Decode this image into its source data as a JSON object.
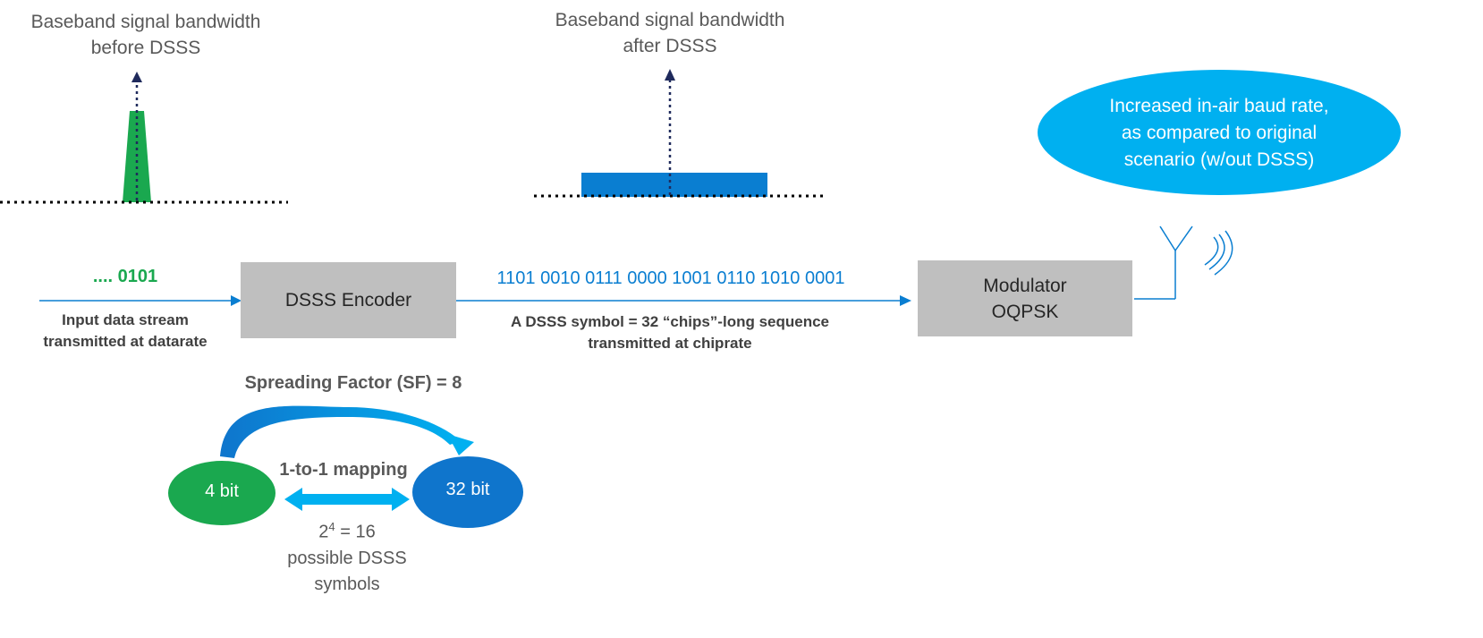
{
  "before_bandwidth": {
    "line1": "Baseband signal bandwidth",
    "line2": "before DSSS"
  },
  "after_bandwidth": {
    "line1": "Baseband signal bandwidth",
    "line2": "after DSSS"
  },
  "callout": {
    "line1": "Increased in-air baud rate,",
    "line2": "as compared to original",
    "line3": "scenario (w/out DSSS)"
  },
  "input_stream": {
    "bits": ".... 0101",
    "label_line1": "Input data stream",
    "label_line2": "transmitted at datarate"
  },
  "encoder": {
    "label": "DSSS Encoder"
  },
  "chip_stream": {
    "chips": "1101 0010 0111 0000 1001 0110 1010 0001",
    "label_line1": "A DSSS symbol = 32 “chips”-long sequence",
    "label_line2": "transmitted at chiprate"
  },
  "modulator": {
    "line1": "Modulator",
    "line2": "OQPSK"
  },
  "spreading": {
    "title": "Spreading Factor (SF) = 8",
    "left_node": "4 bit",
    "right_node": "32 bit",
    "mapping": "1-to-1 mapping",
    "count_base": "2",
    "count_exp": "4",
    "count_rest": " = 16",
    "count_line2": "possible DSSS",
    "count_line3": "symbols"
  },
  "colors": {
    "green": "#1aa84f",
    "blue_bar": "#0a7ed1",
    "blue_text": "#0a7ed1",
    "light_blue": "#00b0f0",
    "dark_blue": "#0f75cc",
    "box_gray": "#bfbfbf",
    "navy": "#1f2a5c"
  }
}
